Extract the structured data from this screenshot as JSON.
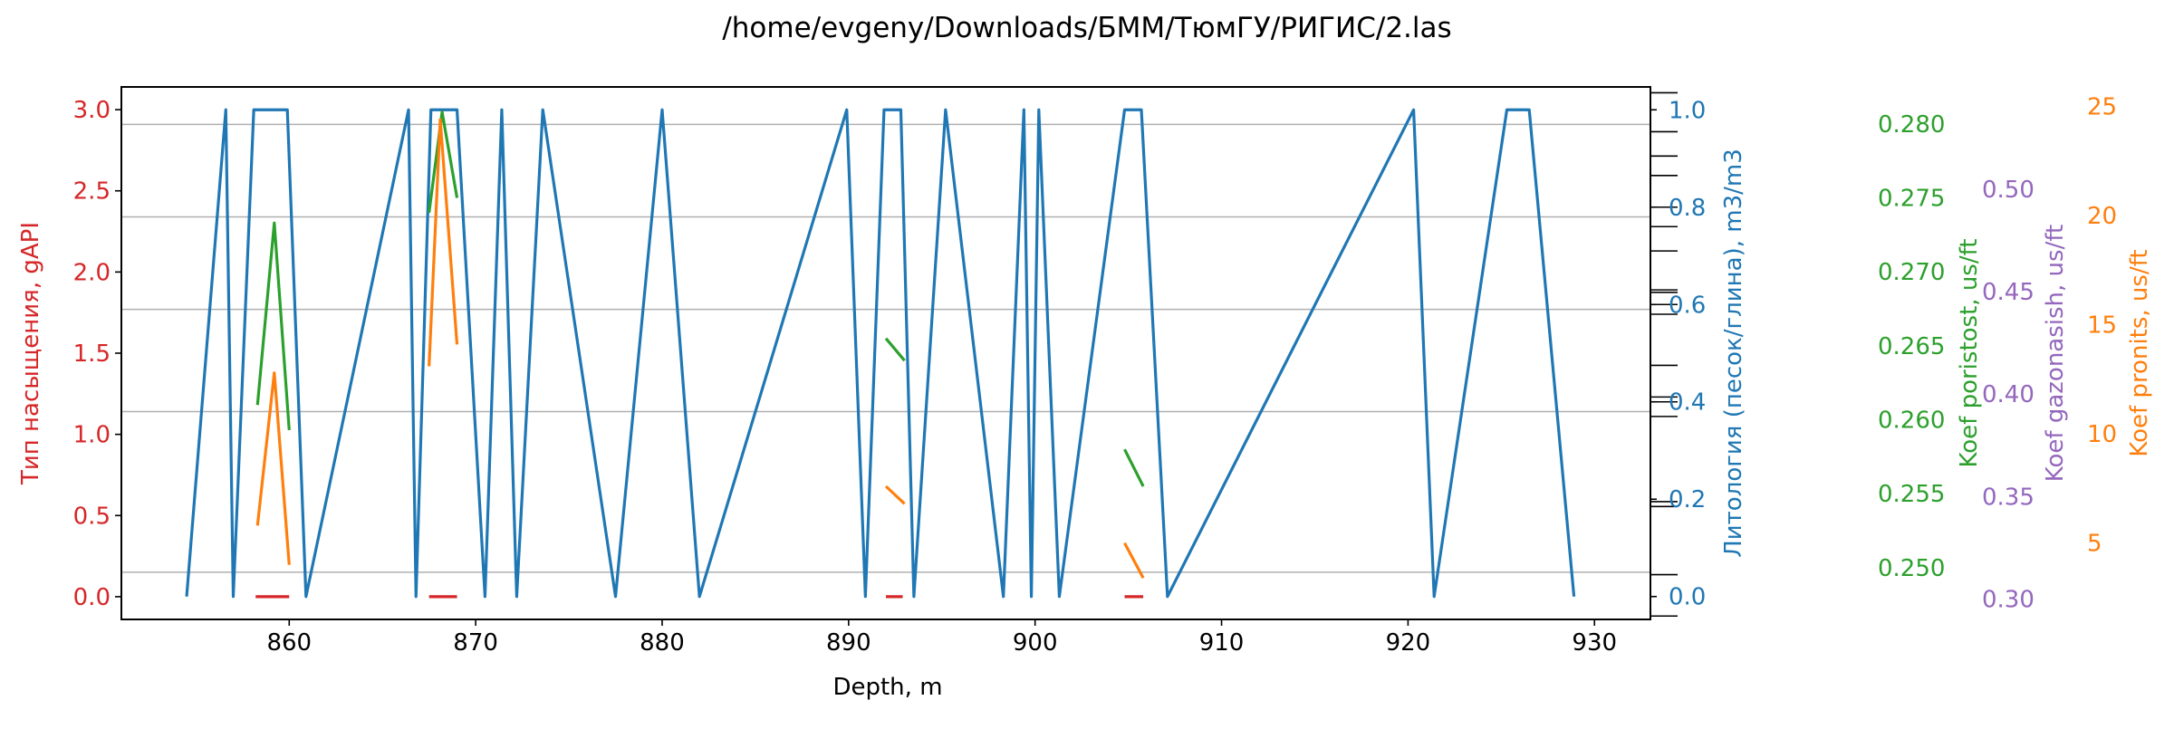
{
  "chart_data": {
    "type": "line",
    "title": "/home/evgeny/Downloads/БММ/ТюмГУ/РИГИС/2.las",
    "xlabel": "Depth, m",
    "xlim": [
      851,
      933
    ],
    "x_ticks": [
      860,
      870,
      880,
      890,
      900,
      910,
      920,
      930
    ],
    "grid": "horizontal",
    "colors": {
      "red": "#d62728",
      "blue": "#1f77b4",
      "green": "#2ca02c",
      "purple": "#9467bd",
      "orange": "#ff7f0e"
    },
    "axes": [
      {
        "id": "saturation",
        "label": "Тип насыщения, gAPI",
        "side": "left",
        "color": "#d62728",
        "ylim": [
          -0.14,
          3.14
        ],
        "ticks": [
          0.0,
          0.5,
          1.0,
          1.5,
          2.0,
          2.5,
          3.0
        ],
        "tick_labels": [
          "0.0",
          "0.5",
          "1.0",
          "1.5",
          "2.0",
          "2.5",
          "3.0"
        ]
      },
      {
        "id": "lithology",
        "label": "Литология (песок/глина), m3/m3",
        "side": "right",
        "color": "#1f77b4",
        "ylim": [
          -0.047,
          1.047
        ],
        "ticks": [
          0.0,
          0.2,
          0.4,
          0.6,
          0.8,
          1.0
        ],
        "tick_labels": [
          "0.0",
          "0.2",
          "0.4",
          "0.6",
          "0.8",
          "1.0"
        ],
        "minor_ticks": [
          -0.04,
          0.045,
          0.185,
          0.195,
          0.37,
          0.4,
          0.41,
          0.475,
          0.58,
          0.6,
          0.625,
          0.63,
          0.71,
          0.76,
          0.8,
          0.865,
          0.905,
          0.955,
          1.035
        ]
      },
      {
        "id": "poristost",
        "label": "Koef poristost, us/ft",
        "side": "right",
        "color": "#2ca02c",
        "ylim": [
          0.2465,
          0.2825
        ],
        "ticks": [
          0.25,
          0.255,
          0.26,
          0.265,
          0.27,
          0.275,
          0.28
        ],
        "tick_labels": [
          "0.250",
          "0.255",
          "0.260",
          "0.265",
          "0.270",
          "0.275",
          "0.280"
        ]
      },
      {
        "id": "gazonasish",
        "label": "Koef gazonasish, us/ft",
        "side": "right",
        "color": "#9467bd",
        "ylim": [
          0.29,
          0.55
        ],
        "ticks": [
          0.3,
          0.35,
          0.4,
          0.45,
          0.5
        ],
        "tick_labels": [
          "0.30",
          "0.35",
          "0.40",
          "0.45",
          "0.50"
        ]
      },
      {
        "id": "pronits",
        "label": "Koef pronits, us/ft",
        "side": "right",
        "color": "#ff7f0e",
        "ylim": [
          1.5,
          25.9
        ],
        "ticks": [
          5,
          10,
          15,
          20,
          25
        ],
        "tick_labels": [
          "5",
          "10",
          "15",
          "20",
          "25"
        ]
      }
    ],
    "series": [
      {
        "axis": "lithology",
        "color": "#1f77b4",
        "segments": [
          [
            [
              854.5,
              0
            ],
            [
              856.6,
              1
            ],
            [
              857.0,
              0
            ],
            [
              858.1,
              1
            ],
            [
              859.9,
              1
            ],
            [
              860.9,
              0
            ],
            [
              866.4,
              1
            ],
            [
              866.8,
              0
            ],
            [
              867.6,
              1
            ],
            [
              869.0,
              1
            ],
            [
              870.5,
              0
            ],
            [
              871.4,
              1
            ],
            [
              872.2,
              0
            ],
            [
              873.6,
              1
            ],
            [
              877.5,
              0
            ],
            [
              880.0,
              1
            ],
            [
              882.0,
              0
            ],
            [
              889.9,
              1
            ],
            [
              890.9,
              0
            ],
            [
              891.9,
              1
            ],
            [
              892.8,
              1
            ],
            [
              893.5,
              0
            ],
            [
              895.2,
              1
            ],
            [
              898.3,
              0
            ],
            [
              899.4,
              1
            ],
            [
              899.8,
              0
            ],
            [
              900.2,
              1
            ],
            [
              901.3,
              0
            ],
            [
              904.8,
              1
            ],
            [
              905.7,
              1
            ],
            [
              907.1,
              0
            ],
            [
              920.3,
              1
            ],
            [
              921.4,
              0
            ],
            [
              925.3,
              1
            ],
            [
              926.5,
              1
            ],
            [
              928.9,
              0
            ]
          ]
        ]
      },
      {
        "axis": "saturation",
        "color": "#d62728",
        "segments": [
          [
            [
              858.2,
              0
            ],
            [
              860.0,
              0
            ]
          ],
          [
            [
              867.5,
              0
            ],
            [
              869.0,
              0
            ]
          ],
          [
            [
              892.0,
              0
            ],
            [
              892.9,
              0
            ]
          ],
          [
            [
              904.8,
              0
            ],
            [
              905.8,
              0
            ]
          ]
        ]
      },
      {
        "axis": "poristost",
        "color": "#2ca02c",
        "segments": [
          [
            [
              858.3,
              0.261
            ],
            [
              859.2,
              0.2733
            ],
            [
              860.0,
              0.2593
            ]
          ],
          [
            [
              867.5,
              0.274
            ],
            [
              868.2,
              0.2808
            ],
            [
              869.0,
              0.275
            ]
          ],
          [
            [
              892.0,
              0.2655
            ],
            [
              893.0,
              0.264
            ]
          ],
          [
            [
              904.8,
              0.258
            ],
            [
              905.8,
              0.2555
            ]
          ]
        ]
      },
      {
        "axis": "pronits",
        "color": "#ff7f0e",
        "segments": [
          [
            [
              858.3,
              5.8
            ],
            [
              859.2,
              12.8
            ],
            [
              860.0,
              4.0
            ]
          ],
          [
            [
              867.5,
              13.1
            ],
            [
              868.1,
              24.4
            ],
            [
              869.0,
              14.1
            ]
          ],
          [
            [
              892.0,
              7.6
            ],
            [
              893.0,
              6.8
            ]
          ],
          [
            [
              904.8,
              5.0
            ],
            [
              905.8,
              3.4
            ]
          ]
        ]
      }
    ]
  }
}
